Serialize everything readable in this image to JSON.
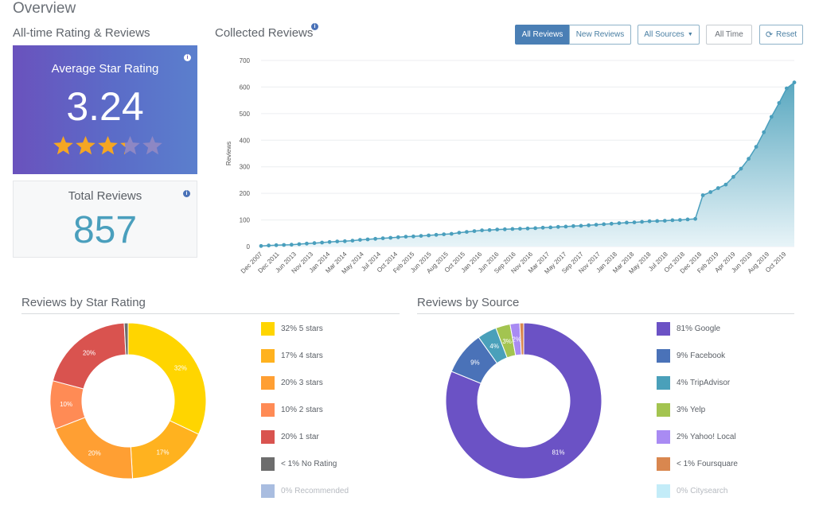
{
  "page": {
    "title": "Overview"
  },
  "rating_card": {
    "section_label": "All-time Rating & Reviews",
    "label": "Average Star Rating",
    "value": "3.24",
    "stars": 3.24,
    "stars_max": 5
  },
  "total_card": {
    "label": "Total Reviews",
    "value": "857"
  },
  "collected": {
    "title": "Collected Reviews",
    "buttons": {
      "all_reviews": "All Reviews",
      "new_reviews": "New Reviews",
      "all_sources": "All Sources",
      "all_time": "All Time",
      "reset": "Reset"
    }
  },
  "chart_data": [
    {
      "type": "area",
      "title": "Collected Reviews",
      "ylabel": "Reviews",
      "ylim": [
        0,
        700
      ],
      "yticks": [
        0,
        100,
        200,
        300,
        400,
        500,
        600,
        700
      ],
      "xtick_labels": [
        "Dec 2007",
        "Dec 2011",
        "Jun 2013",
        "Nov 2013",
        "Jan 2014",
        "Mar 2014",
        "May 2014",
        "Jul 2014",
        "Oct 2014",
        "Feb 2015",
        "Jun 2015",
        "Aug 2015",
        "Oct 2015",
        "Jan 2016",
        "Jun 2016",
        "Sep 2016",
        "Nov 2016",
        "Mar 2017",
        "May 2017",
        "Sep 2017",
        "Nov 2017",
        "Jan 2018",
        "Mar 2018",
        "May 2018",
        "Jul 2018",
        "Oct 2018",
        "Dec 2018",
        "Feb 2019",
        "Apr 2019",
        "Jun 2019",
        "Aug 2019",
        "Oct 2019"
      ],
      "values": [
        2,
        4,
        5,
        6,
        7,
        9,
        11,
        13,
        15,
        17,
        19,
        20,
        22,
        25,
        27,
        29,
        31,
        33,
        35,
        37,
        38,
        40,
        42,
        44,
        46,
        48,
        52,
        55,
        58,
        61,
        62,
        64,
        65,
        66,
        67,
        68,
        69,
        71,
        72,
        74,
        75,
        77,
        78,
        80,
        82,
        84,
        86,
        88,
        90,
        91,
        93,
        95,
        96,
        97,
        99,
        100,
        102,
        104,
        193,
        205,
        220,
        233,
        262,
        293,
        330,
        375,
        430,
        488,
        540,
        595,
        617
      ],
      "grid": true,
      "legend": "none"
    },
    {
      "type": "pie",
      "title": "Reviews by Star Rating",
      "slices": [
        {
          "label": "5 stars",
          "value": 32,
          "pct": "32%",
          "color": "#ffd500"
        },
        {
          "label": "4 stars",
          "value": 17,
          "pct": "17%",
          "color": "#ffb21f"
        },
        {
          "label": "3 stars",
          "value": 20,
          "pct": "20%",
          "color": "#ff9f33"
        },
        {
          "label": "2 stars",
          "value": 10,
          "pct": "10%",
          "color": "#ff8b55"
        },
        {
          "label": "1 star",
          "value": 20,
          "pct": "20%",
          "color": "#d9534f"
        },
        {
          "label": "No Rating",
          "value": 0.8,
          "pct": "",
          "color": "#6d6d6d"
        },
        {
          "label": "Recommended",
          "value": 0,
          "pct": "",
          "color": "#a9bde0"
        }
      ],
      "legend": [
        {
          "text": "32% 5 stars",
          "color": "#ffd500",
          "muted": false
        },
        {
          "text": "17% 4 stars",
          "color": "#ffb21f",
          "muted": false
        },
        {
          "text": "20% 3 stars",
          "color": "#ff9f33",
          "muted": false
        },
        {
          "text": "10% 2 stars",
          "color": "#ff8b55",
          "muted": false
        },
        {
          "text": "20% 1 star",
          "color": "#d9534f",
          "muted": false
        },
        {
          "text": "< 1% No Rating",
          "color": "#6d6d6d",
          "muted": false
        },
        {
          "text": "0% Recommended",
          "color": "#a9bde0",
          "muted": true
        }
      ]
    },
    {
      "type": "pie",
      "title": "Reviews by Source",
      "slices": [
        {
          "label": "Google",
          "value": 81,
          "pct": "81%",
          "color": "#6b52c5"
        },
        {
          "label": "Facebook",
          "value": 9,
          "pct": "9%",
          "color": "#4a72b8"
        },
        {
          "label": "TripAdvisor",
          "value": 4,
          "pct": "4%",
          "color": "#4aa0ba"
        },
        {
          "label": "Yelp",
          "value": 3,
          "pct": "3%",
          "color": "#a3c450"
        },
        {
          "label": "Yahoo! Local",
          "value": 2,
          "pct": "2%",
          "color": "#a98bf3"
        },
        {
          "label": "Foursquare",
          "value": 0.8,
          "pct": "",
          "color": "#d9874f"
        },
        {
          "label": "Citysearch",
          "value": 0,
          "pct": "",
          "color": "#c3ecf8"
        }
      ],
      "legend": [
        {
          "text": "81% Google",
          "color": "#6b52c5",
          "muted": false
        },
        {
          "text": "9% Facebook",
          "color": "#4a72b8",
          "muted": false
        },
        {
          "text": "4% TripAdvisor",
          "color": "#4aa0ba",
          "muted": false
        },
        {
          "text": "3% Yelp",
          "color": "#a3c450",
          "muted": false
        },
        {
          "text": "2% Yahoo! Local",
          "color": "#a98bf3",
          "muted": false
        },
        {
          "text": "< 1% Foursquare",
          "color": "#d9874f",
          "muted": false
        },
        {
          "text": "0% Citysearch",
          "color": "#c3ecf8",
          "muted": true
        }
      ]
    }
  ],
  "colors": {
    "accent": "#4a7fb5",
    "rating_gradient_start": "#6a52bd",
    "rating_gradient_end": "#5b7fcd",
    "total_value": "#4a9fbd",
    "area_line": "#4a9fbd",
    "star_on": "#f5a623",
    "star_off": "#8d87c4"
  }
}
